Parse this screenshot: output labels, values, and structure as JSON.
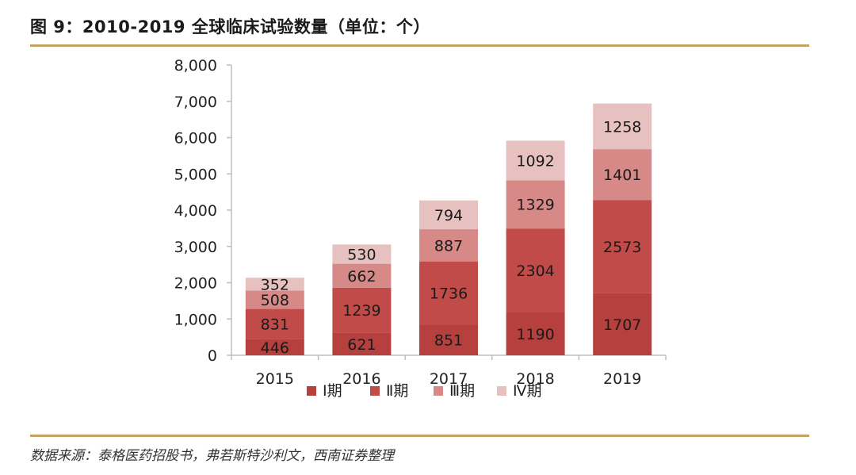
{
  "figure": {
    "title": "图 9：2010-2019 全球临床试验数量（单位：个）",
    "source": "数据来源：泰格医药招股书，弗若斯特沙利文，西南证券整理"
  },
  "chart_data": {
    "type": "bar",
    "stacked": true,
    "categories": [
      "2015",
      "2016",
      "2017",
      "2018",
      "2019"
    ],
    "series": [
      {
        "name": "Ⅰ期",
        "color": "#b5403e",
        "values": [
          446,
          621,
          851,
          1190,
          1707
        ]
      },
      {
        "name": "Ⅱ期",
        "color": "#c14b48",
        "values": [
          831,
          1239,
          1736,
          2304,
          2573
        ]
      },
      {
        "name": "Ⅲ期",
        "color": "#d68987",
        "values": [
          508,
          662,
          887,
          1329,
          1401
        ]
      },
      {
        "name": "Ⅳ期",
        "color": "#e7c1c0",
        "values": [
          352,
          530,
          794,
          1092,
          1258
        ]
      }
    ],
    "ylim": [
      0,
      8000
    ],
    "yticks": [
      "0",
      "1,000",
      "2,000",
      "3,000",
      "4,000",
      "5,000",
      "6,000",
      "7,000",
      "8,000"
    ],
    "grid": false,
    "legend": "bottom"
  },
  "colors": {
    "rule": "#c8a064",
    "axis": "#bfbfbf"
  }
}
